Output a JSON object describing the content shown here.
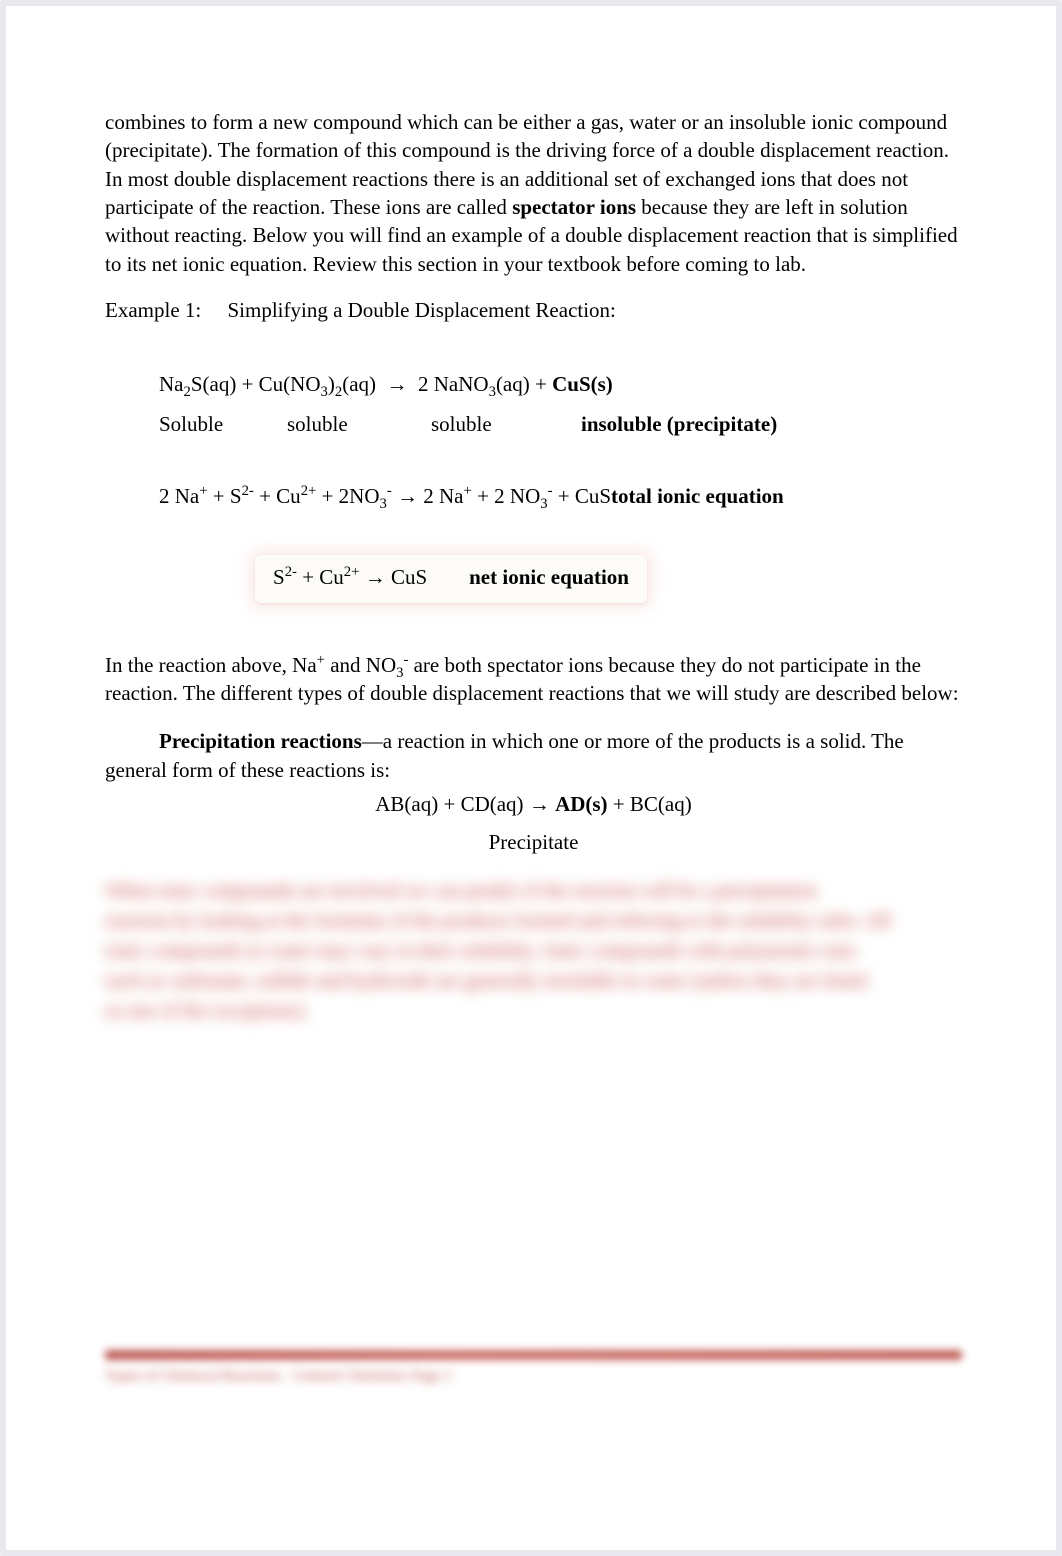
{
  "intro": {
    "p1_a": "combines to form a new compound which can be either a gas, water or an insoluble ionic compound (precipitate). The formation of this compound is the driving force of a double displacement reaction. In most double displacement reactions there is an additional set of exchanged ions that does not participate of the reaction. These ions are called ",
    "p1_b": "spectator ions",
    "p1_c": " because they are left in solution without reacting. Below you will find an example of a double displacement reaction that is simplified to its net ionic equation. Review this section in your textbook before coming to lab."
  },
  "example": {
    "label": "Example 1:     Simplifying a Double Displacement Reaction:"
  },
  "eq1": {
    "lhs": "Na₂S(aq) + Cu(NO₃)₂(aq)  ",
    "arrow": "→",
    "rhs_a": "  2 NaNO₃(aq) + ",
    "rhs_b": "CuS(s)"
  },
  "solubility": {
    "s1": "Soluble",
    "s2": "soluble",
    "s3": "soluble",
    "s4": "insoluble (precipitate)"
  },
  "eq2": {
    "text_a": "2 Na⁺ + S²⁻ + Cu²⁺ + 2NO₃⁻ ",
    "arrow": "→",
    "text_b": " 2 Na⁺ + 2 NO₃⁻ + CuS",
    "label": "total ionic equation"
  },
  "net": {
    "text_a": "S²⁻ + Cu²⁺ ",
    "arrow": "→",
    "text_b": " CuS        ",
    "label": "net ionic equation"
  },
  "after": {
    "p_a": "In the reaction above, Na⁺ and NO₃⁻ are both spectator ions because they do not participate in the reaction. The different types of double displacement reactions that we will study are described below:"
  },
  "precip": {
    "title": "Precipitation reactions",
    "dash": "—",
    "rest": "a reaction in which one or more of the products is a solid. The general form of these reactions is:"
  },
  "general_eq": {
    "lhs": "AB(aq) + CD(aq) ",
    "arrow": "→",
    "rhs_a": " ",
    "rhs_b": "AD(s)",
    "rhs_c": " + BC(aq)"
  },
  "precip_label": "Precipitate",
  "blurred": {
    "l1": "When ionic compounds are involved we can predict if the reaction will be a precipitation",
    "l2": "reaction by looking at the formulas of the products formed and referring to the solubility rules. All",
    "l3": "ionic compounds in water may vary in their solubility. Ionic compounds with polyatomic ions",
    "l4": "such as carbonate, sulfide and hydroxide are generally insoluble in water (unless they are listed",
    "l5": "as one of the exceptions)."
  },
  "footer": {
    "text": "Types of Chemical Reactions · General Chemistry        Page 2"
  }
}
